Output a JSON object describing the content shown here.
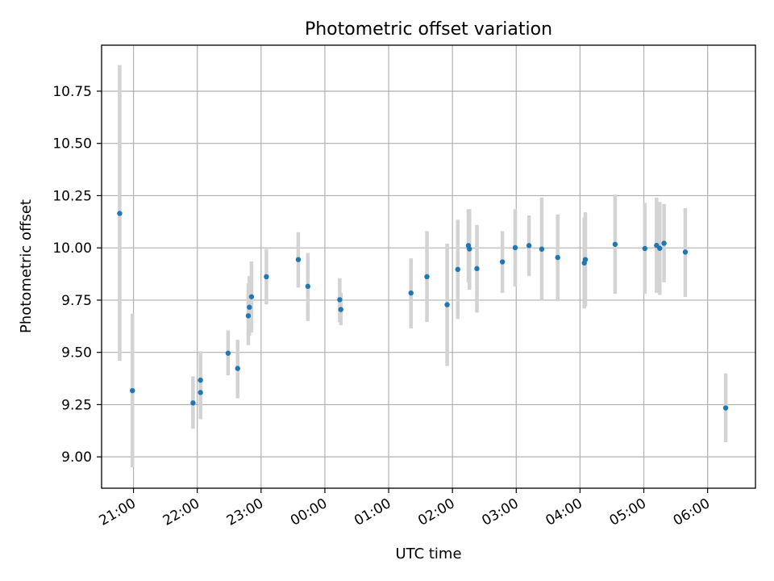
{
  "chart_data": {
    "type": "scatter",
    "title": "Photometric offset variation",
    "xlabel": "UTC time",
    "ylabel": "Photometric offset",
    "grid": true,
    "legend": false,
    "colors": {
      "point": "#1f77b4",
      "errorbar": "#d3d3d3"
    },
    "x_ticks": [
      "21:00",
      "22:00",
      "23:00",
      "00:00",
      "01:00",
      "02:00",
      "03:00",
      "04:00",
      "05:00",
      "06:00"
    ],
    "y_ticks": [
      "9.00",
      "9.25",
      "9.50",
      "9.75",
      "10.00",
      "10.25",
      "10.50",
      "10.75"
    ],
    "xlim": [
      "20:30",
      "06:45"
    ],
    "ylim": [
      8.85,
      10.97
    ],
    "series": [
      {
        "points": [
          {
            "x": "20:47",
            "y": 10.165,
            "err_low": 9.46,
            "err_high": 10.875
          },
          {
            "x": "20:59",
            "y": 9.317,
            "err_low": 8.95,
            "err_high": 9.685
          },
          {
            "x": "21:56",
            "y": 9.258,
            "err_low": 9.135,
            "err_high": 9.385
          },
          {
            "x": "22:03",
            "y": 9.367,
            "err_low": 9.24,
            "err_high": 9.505
          },
          {
            "x": "22:03",
            "y": 9.308,
            "err_low": 9.18,
            "err_high": 9.44
          },
          {
            "x": "22:29",
            "y": 9.496,
            "err_low": 9.39,
            "err_high": 9.605
          },
          {
            "x": "22:38",
            "y": 9.423,
            "err_low": 9.28,
            "err_high": 9.56
          },
          {
            "x": "22:48",
            "y": 9.675,
            "err_low": 9.535,
            "err_high": 9.83
          },
          {
            "x": "22:49",
            "y": 9.716,
            "err_low": 9.58,
            "err_high": 9.865
          },
          {
            "x": "22:51",
            "y": 9.766,
            "err_low": 9.595,
            "err_high": 9.935
          },
          {
            "x": "23:05",
            "y": 9.862,
            "err_low": 9.73,
            "err_high": 9.995
          },
          {
            "x": "23:35",
            "y": 9.944,
            "err_low": 9.81,
            "err_high": 10.075
          },
          {
            "x": "23:44",
            "y": 9.816,
            "err_low": 9.65,
            "err_high": 9.975
          },
          {
            "x": "00:14",
            "y": 9.752,
            "err_low": 9.645,
            "err_high": 9.855
          },
          {
            "x": "00:15",
            "y": 9.705,
            "err_low": 9.63,
            "err_high": 9.785
          },
          {
            "x": "01:21",
            "y": 9.784,
            "err_low": 9.615,
            "err_high": 9.95
          },
          {
            "x": "01:36",
            "y": 9.862,
            "err_low": 9.645,
            "err_high": 10.08
          },
          {
            "x": "01:55",
            "y": 9.728,
            "err_low": 9.435,
            "err_high": 10.02
          },
          {
            "x": "02:05",
            "y": 9.897,
            "err_low": 9.66,
            "err_high": 10.135
          },
          {
            "x": "02:15",
            "y": 10.011,
            "err_low": 9.835,
            "err_high": 10.185
          },
          {
            "x": "02:16",
            "y": 9.995,
            "err_low": 9.8,
            "err_high": 10.185
          },
          {
            "x": "02:23",
            "y": 9.901,
            "err_low": 9.69,
            "err_high": 10.11
          },
          {
            "x": "02:47",
            "y": 9.933,
            "err_low": 9.785,
            "err_high": 10.08
          },
          {
            "x": "02:59",
            "y": 10.001,
            "err_low": 9.815,
            "err_high": 10.185
          },
          {
            "x": "03:12",
            "y": 10.011,
            "err_low": 9.865,
            "err_high": 10.155
          },
          {
            "x": "03:24",
            "y": 9.994,
            "err_low": 9.75,
            "err_high": 10.24
          },
          {
            "x": "03:39",
            "y": 9.954,
            "err_low": 9.745,
            "err_high": 10.16
          },
          {
            "x": "04:04",
            "y": 9.928,
            "err_low": 9.71,
            "err_high": 10.145
          },
          {
            "x": "04:05",
            "y": 9.944,
            "err_low": 9.72,
            "err_high": 10.17
          },
          {
            "x": "04:33",
            "y": 10.017,
            "err_low": 9.78,
            "err_high": 10.255
          },
          {
            "x": "05:01",
            "y": 9.997,
            "err_low": 9.78,
            "err_high": 10.215
          },
          {
            "x": "05:12",
            "y": 10.012,
            "err_low": 9.785,
            "err_high": 10.24
          },
          {
            "x": "05:15",
            "y": 9.998,
            "err_low": 9.775,
            "err_high": 10.22
          },
          {
            "x": "05:19",
            "y": 10.022,
            "err_low": 9.835,
            "err_high": 10.21
          },
          {
            "x": "05:39",
            "y": 9.98,
            "err_low": 9.765,
            "err_high": 10.19
          },
          {
            "x": "06:17",
            "y": 9.234,
            "err_low": 9.07,
            "err_high": 9.4
          }
        ]
      }
    ]
  }
}
